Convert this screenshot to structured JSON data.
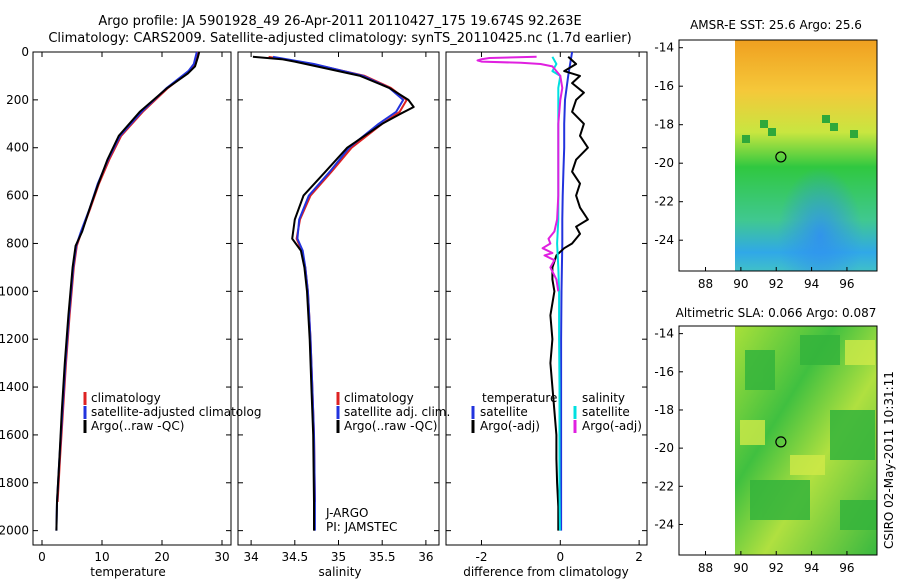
{
  "header": {
    "title_line1": "Argo profile: JA 5901928_49 26-Apr-2011 20110427_175 19.674S 92.263E",
    "title_line2": "Climatology: CARS2009. Satellite-adjusted climatology: synTS_20110425.nc (1.7d earlier)"
  },
  "footer": {
    "stamp": "CSIRO 02-May-2011 10:31:11"
  },
  "colors": {
    "climatology": "#dd2222",
    "satellite": "#2233dd",
    "argo": "#000000",
    "cyan": "#00e0e0",
    "magenta": "#e020e0"
  },
  "chart_data": [
    {
      "type": "line",
      "title": "",
      "xlabel": "temperature",
      "ylabel": "",
      "xlim": [
        -1.5,
        31.5
      ],
      "ylim": [
        2060,
        0
      ],
      "xticks": [
        0,
        10,
        20,
        30
      ],
      "xtick_labels": [
        "0",
        "10",
        "20",
        "30"
      ],
      "yticks": [
        0,
        200,
        400,
        600,
        800,
        1000,
        1200,
        1400,
        1600,
        1800,
        2000
      ],
      "ytick_labels": [
        "0",
        "200",
        "400",
        "600",
        "800",
        "1000",
        "1200",
        "1400",
        "1600",
        "1800",
        "2000"
      ],
      "legend": [
        "climatology",
        "satellite-adjusted climatolog",
        "Argo(..raw -QC)"
      ],
      "series": [
        {
          "name": "climatology",
          "color": "#dd2222",
          "y": [
            0,
            50,
            80,
            150,
            250,
            350,
            450,
            550,
            650,
            750,
            810,
            900,
            1100,
            1300,
            1500,
            1700,
            1880
          ],
          "x": [
            26.0,
            25.6,
            24.6,
            21.0,
            16.8,
            13.2,
            11.2,
            9.5,
            8.1,
            6.6,
            5.8,
            5.3,
            4.6,
            4.0,
            3.5,
            3.0,
            2.6
          ]
        },
        {
          "name": "satellite-adjusted climatology",
          "color": "#2233dd",
          "y": [
            0,
            50,
            80,
            150,
            250,
            350,
            450,
            550,
            650,
            750,
            810,
            900,
            1100,
            1300,
            1500,
            1700,
            1880,
            2000
          ],
          "x": [
            25.8,
            25.3,
            24.4,
            20.8,
            16.6,
            13.0,
            11.0,
            9.3,
            8.0,
            6.5,
            5.7,
            5.2,
            4.5,
            3.9,
            3.4,
            2.9,
            2.5,
            2.4
          ]
        },
        {
          "name": "Argo(..raw -QC)",
          "color": "#000000",
          "y": [
            0,
            20,
            60,
            90,
            150,
            250,
            350,
            450,
            550,
            650,
            750,
            810,
            900,
            1100,
            1300,
            1500,
            1700,
            1880,
            2000
          ],
          "x": [
            26.2,
            26.0,
            25.5,
            24.3,
            20.9,
            16.3,
            12.8,
            10.9,
            9.4,
            8.0,
            6.7,
            5.6,
            5.1,
            4.4,
            3.8,
            3.3,
            2.9,
            2.5,
            2.4
          ]
        }
      ]
    },
    {
      "type": "line",
      "title": "",
      "xlabel": "salinity",
      "ylabel": "",
      "xlim": [
        33.85,
        36.15
      ],
      "ylim": [
        2060,
        0
      ],
      "xticks": [
        34,
        34.5,
        35,
        35.5,
        36
      ],
      "xtick_labels": [
        "34",
        "34.5",
        "35",
        "35.5",
        "36"
      ],
      "legend": [
        "climatology",
        "satellite adj. clim.",
        "Argo(..raw -QC)"
      ],
      "annotations": [
        "J-ARGO",
        "PI: JAMSTEC"
      ],
      "series": [
        {
          "name": "climatology",
          "color": "#dd2222",
          "y": [
            20,
            50,
            100,
            150,
            200,
            250,
            300,
            400,
            500,
            600,
            700,
            780,
            830,
            900,
            1000,
            1200,
            1400,
            1600,
            1880
          ],
          "x": [
            34.2,
            34.7,
            35.3,
            35.6,
            35.78,
            35.7,
            35.5,
            35.15,
            34.92,
            34.68,
            34.56,
            34.52,
            34.58,
            34.62,
            34.65,
            34.68,
            34.7,
            34.72,
            34.73
          ]
        },
        {
          "name": "satellite adj. clim.",
          "color": "#2233dd",
          "y": [
            20,
            50,
            100,
            150,
            200,
            250,
            300,
            400,
            500,
            600,
            700,
            780,
            830,
            900,
            1000,
            1200,
            1400,
            1600,
            1880,
            2000
          ],
          "x": [
            34.25,
            34.72,
            35.28,
            35.58,
            35.74,
            35.66,
            35.46,
            35.12,
            34.9,
            34.66,
            34.55,
            34.53,
            34.59,
            34.62,
            34.65,
            34.68,
            34.7,
            34.72,
            34.73,
            34.73
          ]
        },
        {
          "name": "Argo(..raw -QC)",
          "color": "#000000",
          "y": [
            20,
            30,
            40,
            60,
            100,
            150,
            200,
            230,
            260,
            300,
            400,
            500,
            600,
            700,
            780,
            800,
            830,
            900,
            1000,
            1200,
            1400,
            1600,
            1880,
            2000
          ],
          "x": [
            34.02,
            34.35,
            34.5,
            34.75,
            35.25,
            35.58,
            35.8,
            35.86,
            35.7,
            35.5,
            35.1,
            34.85,
            34.6,
            34.5,
            34.47,
            34.51,
            34.57,
            34.61,
            34.64,
            34.67,
            34.69,
            34.71,
            34.72,
            34.72
          ]
        }
      ]
    },
    {
      "type": "line",
      "title": "",
      "xlabel": "difference from climatology",
      "ylabel": "",
      "xlim": [
        -2.9,
        2.2
      ],
      "ylim": [
        2060,
        0
      ],
      "xticks": [
        -2,
        0,
        2
      ],
      "xtick_labels": [
        "-2",
        "0",
        "2"
      ],
      "legend_temperature_heading": "temperature",
      "legend_salinity_heading": "salinity",
      "legend": [
        "satellite",
        "Argo(-adj)",
        "satellite",
        "Argo(-adj)"
      ],
      "series": [
        {
          "name": "temperature satellite",
          "color": "#2233dd",
          "y": [
            0,
            100,
            200,
            300,
            400,
            500,
            600,
            700,
            800,
            900,
            1000,
            1200,
            1400,
            1600,
            1800,
            2000
          ],
          "x": [
            0.3,
            0.2,
            0.12,
            0.1,
            0.1,
            0.08,
            0.06,
            0.05,
            0.05,
            0.04,
            0.03,
            0.02,
            0.02,
            0.02,
            0.02,
            0.02
          ]
        },
        {
          "name": "temperature Argo(-adj)",
          "color": "#000000",
          "y": [
            20,
            50,
            80,
            100,
            130,
            170,
            200,
            250,
            300,
            350,
            400,
            450,
            500,
            550,
            600,
            650,
            700,
            730,
            760,
            800,
            820,
            850,
            900,
            950,
            1000,
            1100,
            1200,
            1300,
            1400,
            1500,
            1600,
            1700,
            1800,
            1900,
            2000
          ],
          "x": [
            0.2,
            0.4,
            0.1,
            0.5,
            0.3,
            0.6,
            0.4,
            0.3,
            0.6,
            0.5,
            0.7,
            0.4,
            0.3,
            0.5,
            0.4,
            0.5,
            0.7,
            0.4,
            0.5,
            0.3,
            0.1,
            -0.1,
            -0.2,
            -0.2,
            -0.15,
            -0.25,
            -0.2,
            -0.25,
            -0.2,
            -0.15,
            -0.1,
            -0.1,
            -0.08,
            -0.05,
            -0.05
          ]
        },
        {
          "name": "salinity satellite",
          "color": "#00e0e0",
          "y": [
            20,
            50,
            80,
            100,
            150,
            200,
            300,
            400,
            500,
            600,
            700,
            800,
            900,
            1000,
            1200,
            1400,
            1600,
            1800,
            2000
          ],
          "x": [
            -0.2,
            -0.1,
            -0.2,
            0.0,
            -0.05,
            -0.05,
            -0.05,
            -0.05,
            -0.05,
            -0.05,
            -0.05,
            -0.08,
            -0.05,
            -0.03,
            -0.03,
            -0.02,
            -0.02,
            -0.02,
            -0.01
          ]
        },
        {
          "name": "salinity Argo(-adj)",
          "color": "#e020e0",
          "y": [
            20,
            25,
            30,
            35,
            40,
            45,
            50,
            60,
            80,
            100,
            150,
            200,
            300,
            400,
            500,
            600,
            700,
            750,
            780,
            800,
            820,
            840,
            850,
            870,
            900,
            950,
            1000
          ],
          "x": [
            -0.6,
            -1.8,
            -2.0,
            -2.1,
            -2.0,
            -1.0,
            -0.5,
            -0.2,
            -0.1,
            0.0,
            0.05,
            0.0,
            -0.05,
            -0.05,
            -0.05,
            -0.05,
            -0.08,
            -0.15,
            -0.3,
            -0.25,
            -0.45,
            -0.2,
            -0.4,
            -0.15,
            -0.25,
            -0.1,
            -0.05
          ]
        }
      ]
    },
    {
      "type": "heatmap",
      "title": "AMSR-E SST: 25.6  Argo: 25.6",
      "xlim": [
        86.5,
        97.7
      ],
      "ylim": [
        -25.6,
        -13.6
      ],
      "xticks": [
        88,
        90,
        92,
        94,
        96
      ],
      "xtick_labels": [
        "88",
        "90",
        "92",
        "94",
        "96"
      ],
      "yticks": [
        -14,
        -16,
        -18,
        -20,
        -22,
        -24
      ],
      "ytick_labels": [
        "-14",
        "-16",
        "-18",
        "-20",
        "-22",
        "-24"
      ],
      "data_xlim": [
        90,
        97.7
      ],
      "float_position": {
        "lon": 92.263,
        "lat": -19.674
      }
    },
    {
      "type": "heatmap",
      "title": "Altimetric SLA: 0.066  Argo: 0.087",
      "xlim": [
        86.5,
        97.7
      ],
      "ylim": [
        -25.6,
        -13.6
      ],
      "xticks": [
        88,
        90,
        92,
        94,
        96
      ],
      "xtick_labels": [
        "88",
        "90",
        "92",
        "94",
        "96"
      ],
      "yticks": [
        -14,
        -16,
        -18,
        -20,
        -22,
        -24
      ],
      "ytick_labels": [
        "-14",
        "-16",
        "-18",
        "-20",
        "-22",
        "-24"
      ],
      "data_xlim": [
        90,
        97.7
      ],
      "float_position": {
        "lon": 92.263,
        "lat": -19.674
      }
    }
  ]
}
